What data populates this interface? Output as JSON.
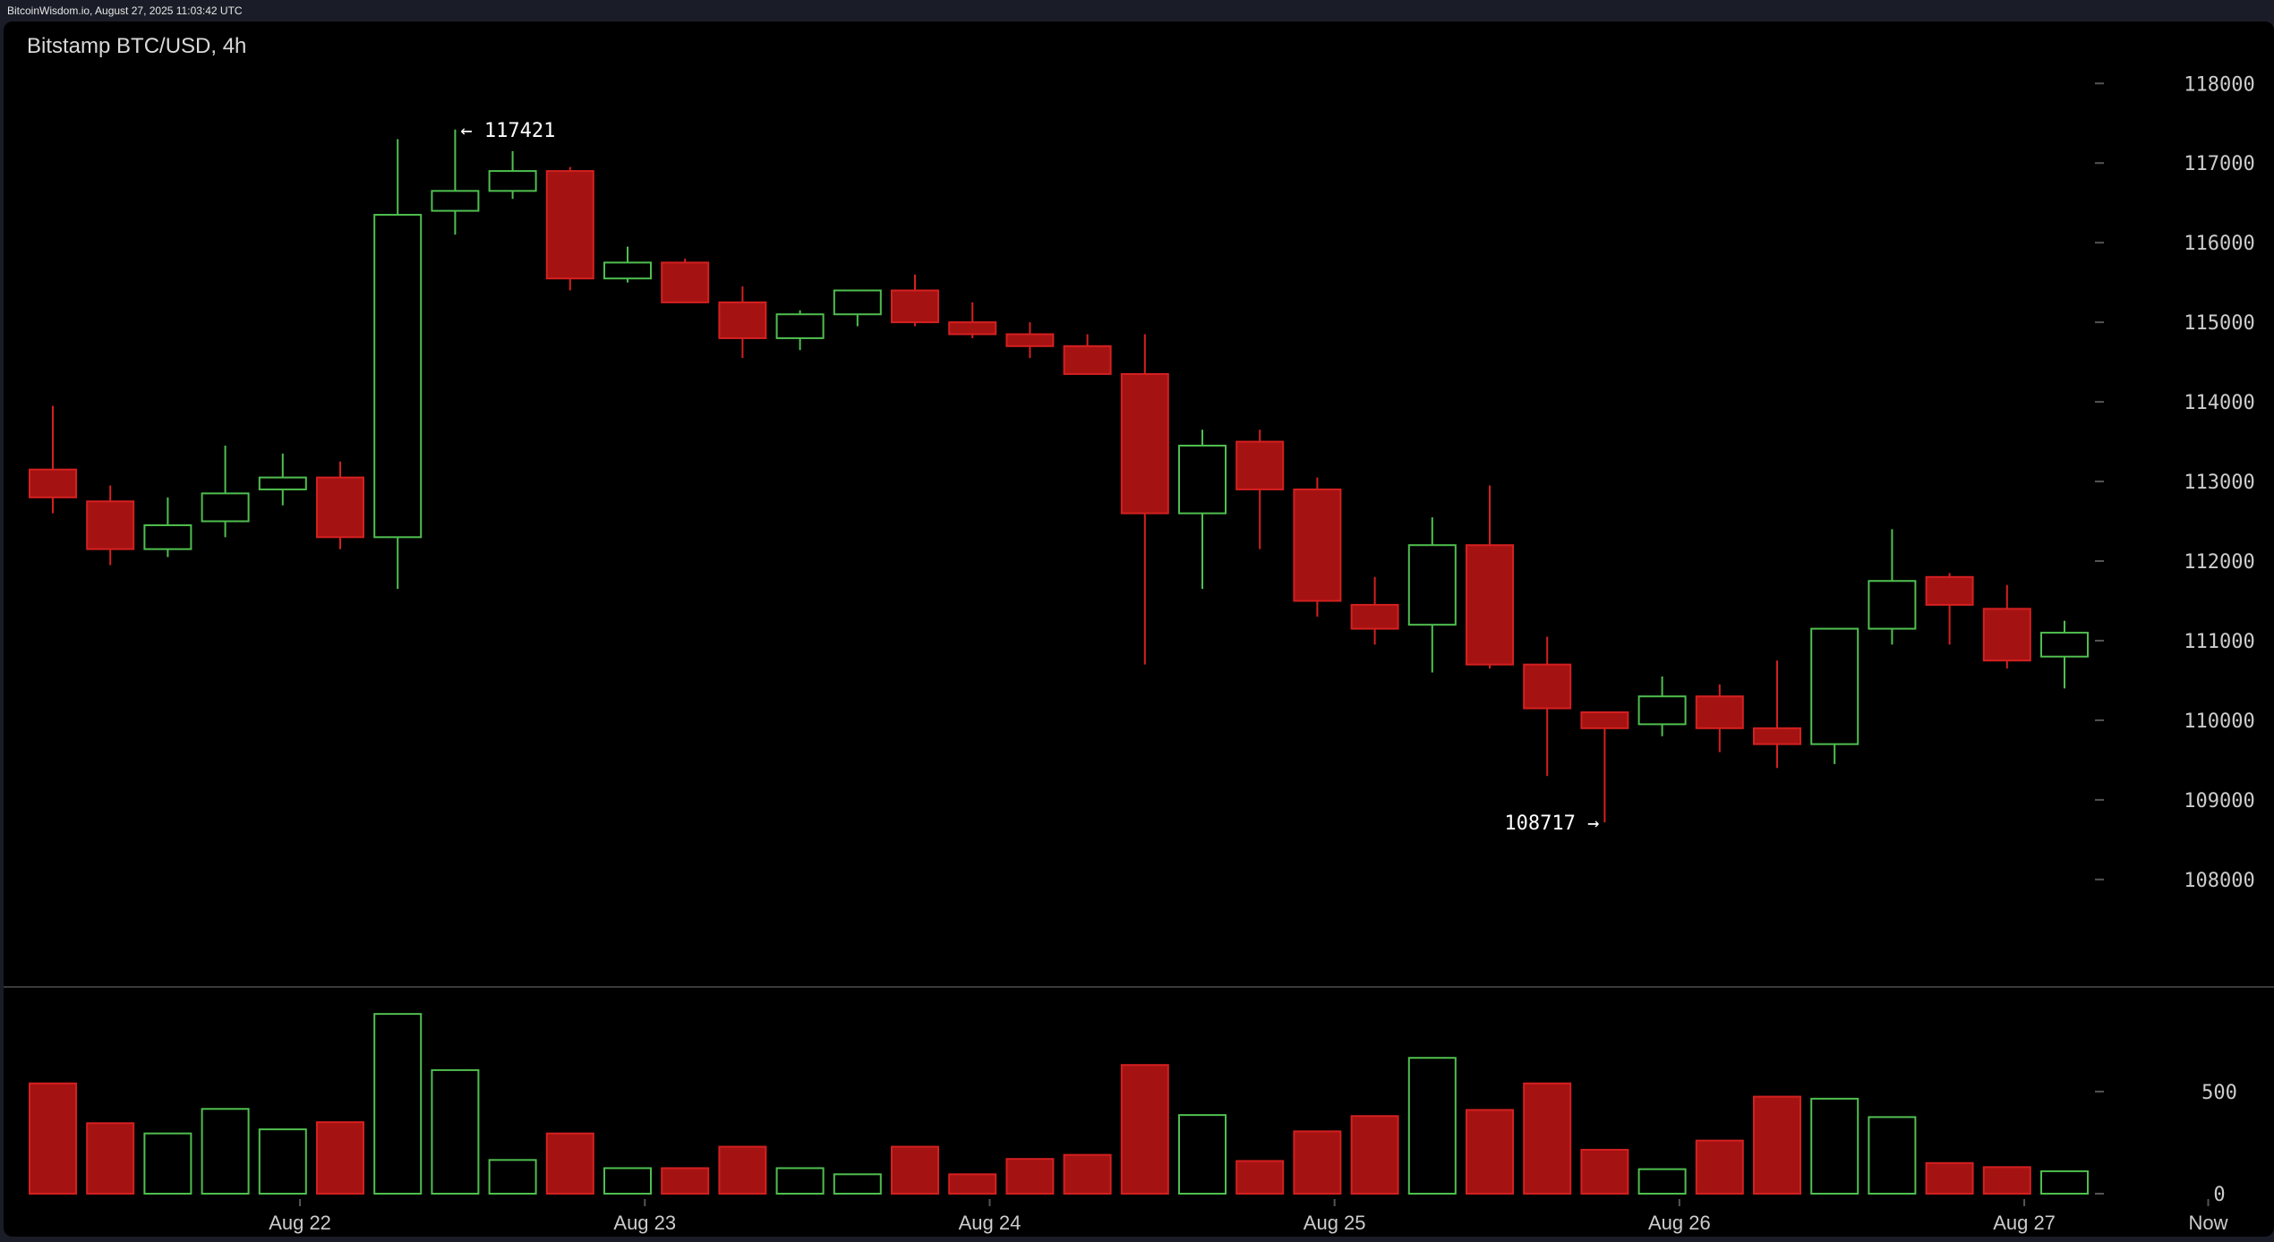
{
  "header": {
    "source_line": "BitcoinWisdom.io, August 27, 2025 11:03:42 UTC"
  },
  "chart_data": {
    "type": "candlestick",
    "title": "Bitstamp BTC/USD, 4h",
    "colors": {
      "up": "#4fbf4f",
      "down": "#a51212",
      "down_border": "#d42020",
      "grid": "#333333",
      "axis_text": "#cccccc"
    },
    "price_axis": {
      "ylim": [
        107200,
        118700
      ],
      "ticks": [
        108000,
        109000,
        110000,
        111000,
        112000,
        113000,
        114000,
        115000,
        116000,
        117000,
        118000
      ]
    },
    "volume_axis": {
      "ylim": [
        0,
        920
      ],
      "ticks": [
        0,
        500
      ]
    },
    "x_labels": [
      {
        "label": "Aug 22",
        "at": 4.3
      },
      {
        "label": "Aug 23",
        "at": 10.3
      },
      {
        "label": "Aug 24",
        "at": 16.3
      },
      {
        "label": "Aug 25",
        "at": 22.3
      },
      {
        "label": "Aug 26",
        "at": 28.3
      },
      {
        "label": "Aug 27",
        "at": 34.3
      },
      {
        "label": "Now",
        "at": 37.5
      }
    ],
    "annotations": {
      "high": {
        "text": "← 117421",
        "candle": 7,
        "price": 117421
      },
      "low": {
        "text": "108717 →",
        "candle": 27,
        "price": 108717
      }
    },
    "candles": [
      {
        "o": 113150,
        "h": 113950,
        "l": 112600,
        "c": 112800,
        "v": 540
      },
      {
        "o": 112750,
        "h": 112950,
        "l": 111950,
        "c": 112150,
        "v": 345
      },
      {
        "o": 112150,
        "h": 112800,
        "l": 112050,
        "c": 112450,
        "v": 295
      },
      {
        "o": 112500,
        "h": 113450,
        "l": 112300,
        "c": 112850,
        "v": 415
      },
      {
        "o": 112900,
        "h": 113350,
        "l": 112700,
        "c": 113050,
        "v": 315
      },
      {
        "o": 113050,
        "h": 113250,
        "l": 112150,
        "c": 112300,
        "v": 350
      },
      {
        "o": 112300,
        "h": 117300,
        "l": 111650,
        "c": 116350,
        "v": 880
      },
      {
        "o": 116400,
        "h": 117421,
        "l": 116100,
        "c": 116650,
        "v": 605
      },
      {
        "o": 116650,
        "h": 117150,
        "l": 116550,
        "c": 116900,
        "v": 165
      },
      {
        "o": 116900,
        "h": 116950,
        "l": 115400,
        "c": 115550,
        "v": 295
      },
      {
        "o": 115550,
        "h": 115950,
        "l": 115500,
        "c": 115750,
        "v": 125
      },
      {
        "o": 115750,
        "h": 115800,
        "l": 115250,
        "c": 115250,
        "v": 125
      },
      {
        "o": 115250,
        "h": 115450,
        "l": 114550,
        "c": 114800,
        "v": 230
      },
      {
        "o": 114800,
        "h": 115150,
        "l": 114650,
        "c": 115100,
        "v": 125
      },
      {
        "o": 115100,
        "h": 115400,
        "l": 114950,
        "c": 115400,
        "v": 95
      },
      {
        "o": 115400,
        "h": 115600,
        "l": 114950,
        "c": 115000,
        "v": 230
      },
      {
        "o": 115000,
        "h": 115250,
        "l": 114800,
        "c": 114850,
        "v": 95
      },
      {
        "o": 114850,
        "h": 115000,
        "l": 114550,
        "c": 114700,
        "v": 170
      },
      {
        "o": 114700,
        "h": 114850,
        "l": 114350,
        "c": 114350,
        "v": 190
      },
      {
        "o": 114350,
        "h": 114850,
        "l": 110700,
        "c": 112600,
        "v": 630
      },
      {
        "o": 112600,
        "h": 113650,
        "l": 111650,
        "c": 113450,
        "v": 385
      },
      {
        "o": 113500,
        "h": 113650,
        "l": 112150,
        "c": 112900,
        "v": 160
      },
      {
        "o": 112900,
        "h": 113050,
        "l": 111300,
        "c": 111500,
        "v": 305
      },
      {
        "o": 111450,
        "h": 111800,
        "l": 110950,
        "c": 111150,
        "v": 380
      },
      {
        "o": 111200,
        "h": 112550,
        "l": 110600,
        "c": 112200,
        "v": 665
      },
      {
        "o": 112200,
        "h": 112950,
        "l": 110650,
        "c": 110700,
        "v": 410
      },
      {
        "o": 110700,
        "h": 111050,
        "l": 109300,
        "c": 110150,
        "v": 540
      },
      {
        "o": 110100,
        "h": 110100,
        "l": 108717,
        "c": 109900,
        "v": 215
      },
      {
        "o": 109950,
        "h": 110550,
        "l": 109800,
        "c": 110300,
        "v": 120
      },
      {
        "o": 110300,
        "h": 110450,
        "l": 109600,
        "c": 109900,
        "v": 260
      },
      {
        "o": 109900,
        "h": 110750,
        "l": 109400,
        "c": 109700,
        "v": 475
      },
      {
        "o": 109700,
        "h": 111150,
        "l": 109450,
        "c": 111150,
        "v": 465
      },
      {
        "o": 111150,
        "h": 112400,
        "l": 110950,
        "c": 111750,
        "v": 375
      },
      {
        "o": 111800,
        "h": 111850,
        "l": 110950,
        "c": 111450,
        "v": 150
      },
      {
        "o": 111400,
        "h": 111700,
        "l": 110650,
        "c": 110750,
        "v": 130
      },
      {
        "o": 110800,
        "h": 111250,
        "l": 110400,
        "c": 111100,
        "v": 110
      }
    ]
  }
}
